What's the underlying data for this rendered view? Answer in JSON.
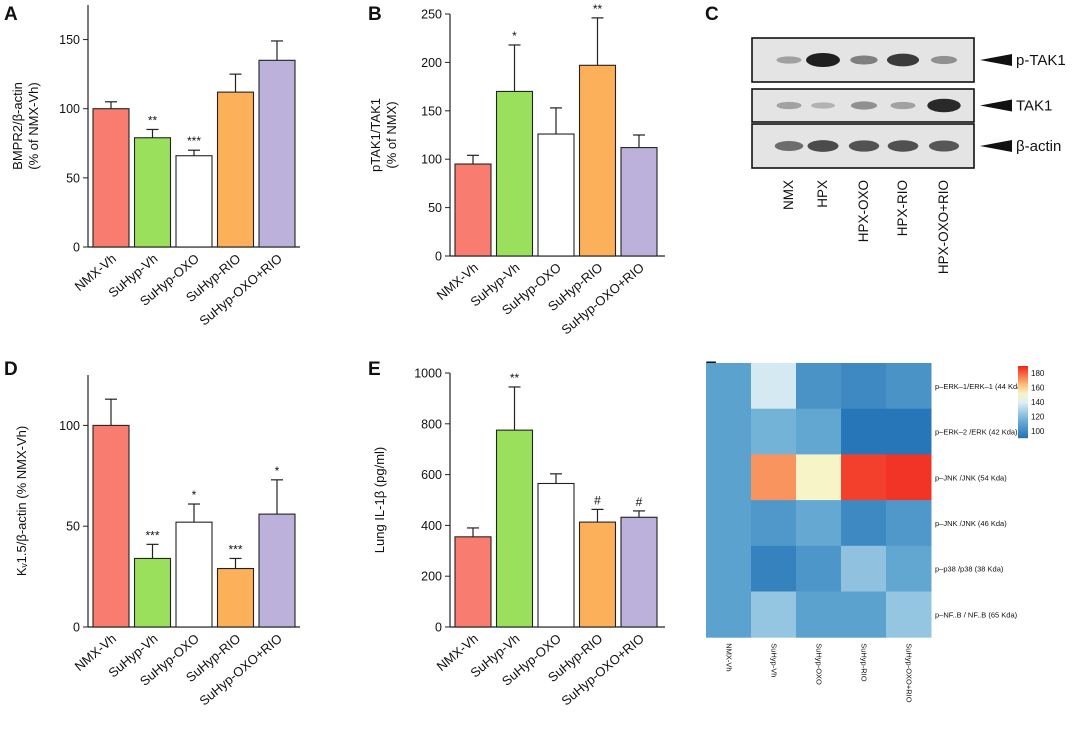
{
  "panels": [
    {
      "letter": "A"
    },
    {
      "letter": "B"
    },
    {
      "letter": "C"
    },
    {
      "letter": "D"
    },
    {
      "letter": "E"
    },
    {
      "letter": "F"
    }
  ],
  "colors": {
    "NMX-Vh": "#f87c6f",
    "SuHyp-Vh": "#9be05c",
    "SuHyp-OXO": "#ffffff",
    "SuHyp-RIO": "#fdb05a",
    "SuHyp-OXO+RIO": "#bcb1db"
  },
  "chart_data": [
    {
      "id": "A",
      "type": "bar",
      "ylabel": "BMPR2/β-actin\n(% of NMX-Vh)",
      "categories": [
        "NMX-Vh",
        "SuHyp-Vh",
        "SuHyp-OXO",
        "SuHyp-RIO",
        "SuHyp-OXO+RIO"
      ],
      "values": [
        100,
        79,
        66,
        112,
        135
      ],
      "errors": [
        5,
        6,
        4,
        13,
        14
      ],
      "annotations": [
        "",
        "**",
        "***",
        "",
        ""
      ],
      "ylim": [
        0,
        175
      ],
      "yticks": [
        0,
        50,
        100,
        150
      ]
    },
    {
      "id": "B",
      "type": "bar",
      "ylabel": "pTAK1/TAK1\n(% of NMX)",
      "categories": [
        "NMX-Vh",
        "SuHyp-Vh",
        "SuHyp-OXO",
        "SuHyp-RIO",
        "SuHyp-OXO+RIO"
      ],
      "values": [
        95,
        170,
        126,
        197,
        112
      ],
      "errors": [
        9,
        48,
        27,
        49,
        13
      ],
      "annotations": [
        "",
        "*",
        "",
        "**",
        ""
      ],
      "ylim": [
        0,
        250
      ],
      "yticks": [
        0,
        50,
        100,
        150,
        200,
        250
      ]
    },
    {
      "id": "D",
      "type": "bar",
      "ylabel": "Kᵥ1.5/β-actin (% NMX-Vh)",
      "categories": [
        "NMX-Vh",
        "SuHyp-Vh",
        "SuHyp-OXO",
        "SuHyp-RIO",
        "SuHyp-OXO+RIO"
      ],
      "values": [
        100,
        34,
        52,
        29,
        56
      ],
      "errors": [
        13,
        7,
        9,
        5,
        17
      ],
      "annotations": [
        "",
        "***",
        "*",
        "***",
        "*"
      ],
      "ylim": [
        0,
        125
      ],
      "yticks": [
        0,
        50,
        100
      ]
    },
    {
      "id": "E",
      "type": "bar",
      "ylabel": "Lung IL-1β (pg/ml)",
      "categories": [
        "NMX-Vh",
        "SuHyp-Vh",
        "SuHyp-OXO",
        "SuHyp-RIO",
        "SuHyp-OXO+RIO"
      ],
      "values": [
        355,
        775,
        565,
        413,
        432
      ],
      "errors": [
        35,
        170,
        38,
        50,
        25
      ],
      "annotations": [
        "",
        "**",
        "",
        "#",
        "#"
      ],
      "ylim": [
        0,
        1000
      ],
      "yticks": [
        0,
        200,
        400,
        600,
        800,
        1000
      ]
    },
    {
      "id": "F",
      "type": "heatmap",
      "columns": [
        "NMX-Vh",
        "SuHyp-Vh",
        "SuHyp-OXO",
        "SuHyp-RIO",
        "SuHyp-OXO+RIO"
      ],
      "rows": [
        "p–ERK–1/ERK–1 (44 Kda)",
        "p–ERK–2 /ERK (42 Kda)",
        "p–JNK /JNK (54 Kda)",
        "p–JNK /JNK (46 Kda)",
        "p–p38 /p38 (38 Kda)",
        "p–NF..B / NF..B (65 Kda)"
      ],
      "values": [
        [
          110,
          138,
          104,
          100,
          104
        ],
        [
          110,
          117,
          112,
          92,
          92
        ],
        [
          110,
          172,
          152,
          186,
          188
        ],
        [
          110,
          106,
          113,
          100,
          106
        ],
        [
          110,
          97,
          105,
          123,
          112
        ],
        [
          110,
          124,
          110,
          110,
          124
        ]
      ],
      "colorbar": {
        "range": [
          90,
          190
        ],
        "ticks": [
          100,
          120,
          140,
          160,
          180
        ]
      }
    },
    {
      "id": "C",
      "type": "western_blot",
      "lanes": [
        "NMX",
        "HPX",
        "HPX-OXO",
        "HPX-RIO",
        "HPX-OXO+RIO"
      ],
      "bands": [
        {
          "name": "p-TAK1",
          "intensity": [
            0.25,
            1.0,
            0.45,
            0.85,
            0.35
          ]
        },
        {
          "name": "TAK1",
          "intensity": [
            0.25,
            0.15,
            0.35,
            0.25,
            0.95
          ]
        },
        {
          "name": "β-actin",
          "intensity": [
            0.55,
            0.75,
            0.7,
            0.72,
            0.68
          ]
        }
      ]
    }
  ]
}
